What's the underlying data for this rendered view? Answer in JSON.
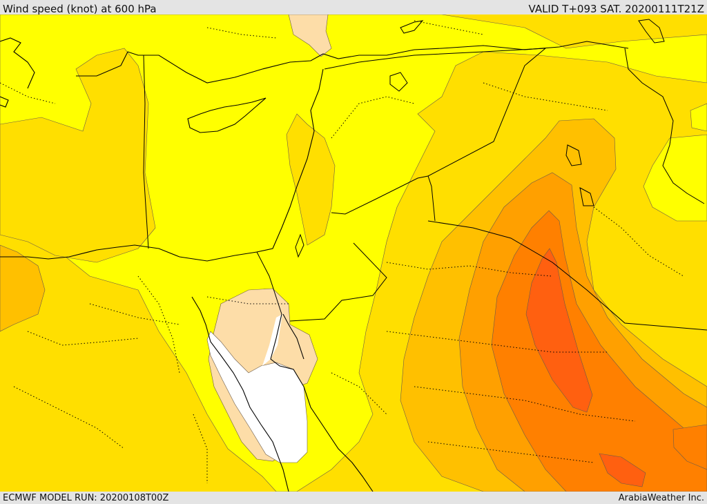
{
  "header": {
    "title": "Wind speed (knot) at 600 hPa",
    "valid": "VALID T+093 SAT. 20200111T21Z"
  },
  "footer": {
    "model_run": "ECMWF MODEL RUN: 20200108T00Z",
    "credit": "ArabiaWeather Inc."
  },
  "map": {
    "colors": {
      "ocean_calm": "#ffffff",
      "very_light": "#fddda8",
      "light": "#ffff00",
      "moderate": "#ffdf00",
      "fresh": "#ffc000",
      "strong": "#ffa000",
      "very_strong": "#ff8000",
      "jet_core": "#ff6010",
      "coastline": "#000000",
      "border": "#000000",
      "contour": "#6a5a4a"
    }
  }
}
